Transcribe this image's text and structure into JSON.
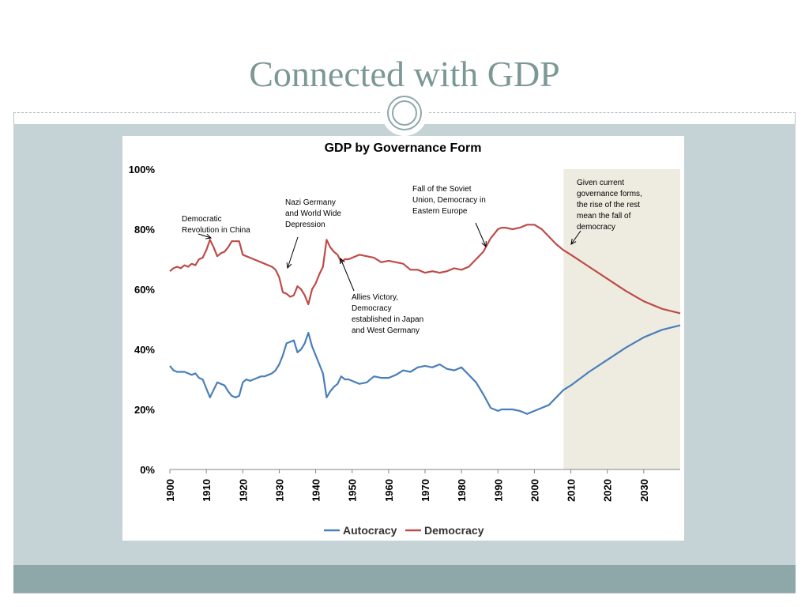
{
  "slide": {
    "title": "Connected with GDP"
  },
  "colors": {
    "autocracy": "#4a7ebb",
    "democracy": "#be4b48",
    "forecast_shade": "#eeece1",
    "title": "#7b9796"
  },
  "chart_data": {
    "type": "line",
    "title": "GDP by Governance Form",
    "xlabel": "",
    "ylabel": "",
    "xlim": [
      1900,
      2040
    ],
    "ylim": [
      0,
      100
    ],
    "x_ticks": [
      "1900",
      "1910",
      "1920",
      "1930",
      "1940",
      "1950",
      "1960",
      "1970",
      "1980",
      "1990",
      "2000",
      "2010",
      "2020",
      "2030"
    ],
    "y_ticks": [
      "0%",
      "20%",
      "40%",
      "60%",
      "80%",
      "100%"
    ],
    "grid": false,
    "legend_position": "bottom",
    "shaded_region": [
      2008,
      2040
    ],
    "series": [
      {
        "name": "Autocracy",
        "x": [
          1900,
          1901,
          1902,
          1903,
          1904,
          1905,
          1906,
          1907,
          1908,
          1909,
          1910,
          1911,
          1912,
          1913,
          1914,
          1915,
          1916,
          1917,
          1918,
          1919,
          1920,
          1921,
          1922,
          1923,
          1924,
          1925,
          1926,
          1927,
          1928,
          1929,
          1930,
          1931,
          1932,
          1933,
          1934,
          1935,
          1936,
          1937,
          1938,
          1939,
          1940,
          1941,
          1942,
          1943,
          1944,
          1945,
          1946,
          1947,
          1948,
          1949,
          1950,
          1952,
          1954,
          1956,
          1958,
          1960,
          1962,
          1964,
          1966,
          1968,
          1970,
          1972,
          1974,
          1976,
          1978,
          1980,
          1982,
          1984,
          1986,
          1988,
          1990,
          1991,
          1992,
          1994,
          1996,
          1998,
          2000,
          2002,
          2004,
          2006,
          2008,
          2010,
          2015,
          2020,
          2025,
          2030,
          2035,
          2040
        ],
        "values": [
          34.5,
          33,
          32.5,
          32.5,
          32.5,
          32,
          31.5,
          32,
          30.5,
          30,
          27,
          24,
          26.5,
          29,
          28.5,
          28,
          26,
          24.5,
          24,
          24.5,
          29,
          30,
          29.5,
          30,
          30.5,
          31,
          31,
          31.5,
          32,
          33,
          35,
          38,
          42,
          42.5,
          43,
          39,
          40,
          42,
          45.5,
          41,
          38,
          35,
          32,
          24,
          26,
          27.5,
          28.5,
          31,
          30,
          30,
          29.5,
          28.5,
          29,
          31,
          30.5,
          30.5,
          31.5,
          33,
          32.5,
          34,
          34.5,
          34,
          35,
          33.5,
          33,
          34,
          31.5,
          29,
          25,
          20.5,
          19.5,
          20,
          20,
          20,
          19.5,
          18.5,
          19.5,
          20.5,
          21.5,
          24,
          26.5,
          28,
          32.5,
          36.5,
          40.5,
          44,
          46.5,
          48
        ]
      },
      {
        "name": "Democracy",
        "x": [
          1900,
          1901,
          1902,
          1903,
          1904,
          1905,
          1906,
          1907,
          1908,
          1909,
          1910,
          1911,
          1912,
          1913,
          1914,
          1915,
          1916,
          1917,
          1918,
          1919,
          1920,
          1921,
          1922,
          1923,
          1924,
          1925,
          1926,
          1927,
          1928,
          1929,
          1930,
          1931,
          1932,
          1933,
          1934,
          1935,
          1936,
          1937,
          1938,
          1939,
          1940,
          1941,
          1942,
          1943,
          1944,
          1945,
          1946,
          1947,
          1948,
          1949,
          1950,
          1952,
          1954,
          1956,
          1958,
          1960,
          1962,
          1964,
          1966,
          1968,
          1970,
          1972,
          1974,
          1976,
          1978,
          1980,
          1982,
          1984,
          1986,
          1988,
          1990,
          1991,
          1992,
          1994,
          1996,
          1998,
          2000,
          2002,
          2004,
          2006,
          2008,
          2010,
          2015,
          2020,
          2025,
          2030,
          2035,
          2040
        ],
        "values": [
          66,
          67,
          67.5,
          67,
          68,
          67.5,
          68.5,
          68,
          70,
          70.5,
          73,
          76.5,
          74,
          71,
          72,
          72.5,
          74,
          76,
          76,
          76,
          71.5,
          71,
          70.5,
          70,
          69.5,
          69,
          68.5,
          68,
          67.5,
          66.5,
          64,
          59,
          58.5,
          57.5,
          58,
          61,
          60,
          58,
          55,
          60,
          62,
          65,
          67.5,
          76.5,
          74,
          72.5,
          71.5,
          69,
          70,
          70,
          70.5,
          71.5,
          71,
          70.5,
          69,
          69.5,
          69,
          68.5,
          66.5,
          66.5,
          65.5,
          66,
          65.5,
          66,
          67,
          66.5,
          67.5,
          70,
          72.5,
          77,
          80,
          80.5,
          80.5,
          80,
          80.5,
          81.5,
          81.5,
          80,
          77.5,
          75,
          73,
          71.5,
          67.5,
          63.5,
          59.5,
          56,
          53.5,
          52
        ]
      }
    ],
    "annotations": [
      {
        "lines": [
          "Democratic",
          "Revolution in China"
        ]
      },
      {
        "lines": [
          "Nazi Germany",
          "and World Wide",
          "Depression"
        ]
      },
      {
        "lines": [
          "Allies Victory,",
          "Democracy",
          "established in Japan",
          "and West Germany"
        ]
      },
      {
        "lines": [
          "Fall of the Soviet",
          "Union, Democracy in",
          "Eastern Europe"
        ]
      },
      {
        "lines": [
          "Given current",
          "governance forms,",
          "the rise of the rest",
          "mean the fall of",
          "democracy"
        ]
      }
    ]
  }
}
